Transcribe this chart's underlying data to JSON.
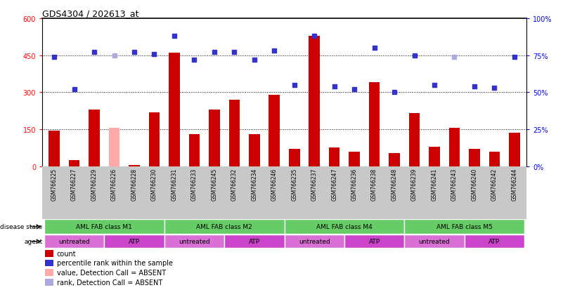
{
  "title": "GDS4304 / 202613_at",
  "samples": [
    "GSM766225",
    "GSM766227",
    "GSM766229",
    "GSM766226",
    "GSM766228",
    "GSM766230",
    "GSM766231",
    "GSM766233",
    "GSM766245",
    "GSM766232",
    "GSM766234",
    "GSM766246",
    "GSM766235",
    "GSM766237",
    "GSM766247",
    "GSM766236",
    "GSM766238",
    "GSM766248",
    "GSM766239",
    "GSM766241",
    "GSM766243",
    "GSM766240",
    "GSM766242",
    "GSM766244"
  ],
  "counts": [
    145,
    25,
    230,
    155,
    5,
    220,
    460,
    130,
    230,
    270,
    130,
    290,
    70,
    530,
    75,
    60,
    340,
    55,
    215,
    80,
    155,
    70,
    60,
    135
  ],
  "percentiles": [
    74,
    52,
    77,
    75,
    77,
    76,
    88,
    72,
    77,
    77,
    72,
    78,
    55,
    88,
    54,
    52,
    80,
    50,
    75,
    55,
    74,
    54,
    53,
    74
  ],
  "absent_count_indices": [
    3
  ],
  "absent_rank_indices": [
    3,
    20
  ],
  "disease_groups": [
    {
      "label": "AML FAB class M1",
      "start": 0,
      "end": 5
    },
    {
      "label": "AML FAB class M2",
      "start": 6,
      "end": 11
    },
    {
      "label": "AML FAB class M4",
      "start": 12,
      "end": 17
    },
    {
      "label": "AML FAB class M5",
      "start": 18,
      "end": 23
    }
  ],
  "agent_groups": [
    {
      "label": "untreated",
      "start": 0,
      "end": 2,
      "color": "#da70d6"
    },
    {
      "label": "ATP",
      "start": 3,
      "end": 5,
      "color": "#cc44cc"
    },
    {
      "label": "untreated",
      "start": 6,
      "end": 8,
      "color": "#da70d6"
    },
    {
      "label": "ATP",
      "start": 9,
      "end": 11,
      "color": "#cc44cc"
    },
    {
      "label": "untreated",
      "start": 12,
      "end": 14,
      "color": "#da70d6"
    },
    {
      "label": "ATP",
      "start": 15,
      "end": 17,
      "color": "#cc44cc"
    },
    {
      "label": "untreated",
      "start": 18,
      "end": 20,
      "color": "#da70d6"
    },
    {
      "label": "ATP",
      "start": 21,
      "end": 23,
      "color": "#cc44cc"
    }
  ],
  "bar_color": "#cc0000",
  "dot_color": "#3333cc",
  "absent_bar_color": "#ffaaaa",
  "absent_dot_color": "#aaaadd",
  "ylim_left": [
    0,
    600
  ],
  "ylim_right": [
    0,
    100
  ],
  "yticks_left": [
    0,
    150,
    300,
    450,
    600
  ],
  "yticks_right": [
    0,
    25,
    50,
    75,
    100
  ],
  "ytick_labels_left": [
    "0",
    "150",
    "300",
    "450",
    "600"
  ],
  "ytick_labels_right": [
    "0%",
    "25%",
    "50%",
    "75%",
    "100%"
  ],
  "grid_values": [
    150,
    300,
    450
  ],
  "disease_color": "#66cc66",
  "sample_bg_color": "#c8c8c8",
  "legend_items": [
    {
      "symbol": "s",
      "color": "#cc0000",
      "label": "count"
    },
    {
      "symbol": "s",
      "color": "#3333cc",
      "label": "percentile rank within the sample"
    },
    {
      "symbol": "s",
      "color": "#ffaaaa",
      "label": "value, Detection Call = ABSENT"
    },
    {
      "symbol": "s",
      "color": "#aaaadd",
      "label": "rank, Detection Call = ABSENT"
    }
  ]
}
